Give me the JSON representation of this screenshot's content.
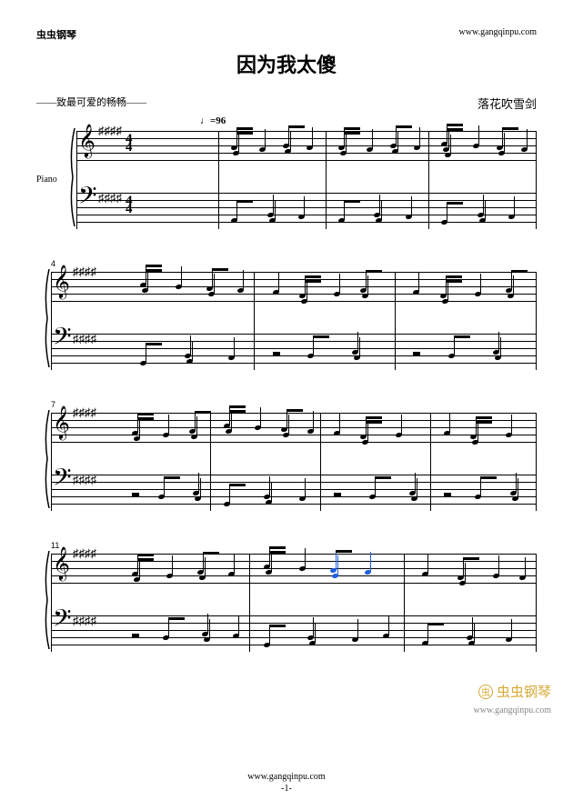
{
  "header": {
    "site_left": "虫虫钢琴",
    "site_right": "www.gangqinpu.com",
    "title": "因为我太傻",
    "dedication": "——致最可爱的畅畅——",
    "composer": "落花吹雪剑",
    "tempo": "♩=96"
  },
  "instrument": "Piano",
  "key_sharps": 4,
  "time_sig": {
    "num": "4",
    "den": "4"
  },
  "systems": [
    {
      "measure_start": null,
      "show_instrument": true,
      "show_timesig": true,
      "bar_positions": [
        0.2,
        0.47,
        0.73,
        1.0
      ],
      "treble_groups": [
        {
          "x": 0.23,
          "beam": true,
          "heads": [
            16,
            22
          ],
          "stems": 2,
          "double": true
        },
        {
          "x": 0.3,
          "heads": [
            18
          ]
        },
        {
          "x": 0.36,
          "beam": true,
          "heads": [
            14,
            20
          ],
          "stems": 2
        },
        {
          "x": 0.42,
          "heads": [
            16
          ]
        },
        {
          "x": 0.5,
          "beam": true,
          "heads": [
            16,
            22
          ],
          "stems": 2,
          "double": true
        },
        {
          "x": 0.57,
          "heads": [
            18
          ]
        },
        {
          "x": 0.63,
          "beam": true,
          "heads": [
            14,
            20
          ],
          "stems": 2
        },
        {
          "x": 0.69,
          "heads": [
            16
          ]
        },
        {
          "x": 0.76,
          "beam": true,
          "heads": [
            12,
            18,
            24
          ],
          "stems": 3,
          "double": true
        },
        {
          "x": 0.84,
          "heads": [
            14
          ]
        },
        {
          "x": 0.9,
          "beam": true,
          "heads": [
            16,
            22
          ],
          "stems": 2
        },
        {
          "x": 0.96,
          "heads": [
            18
          ]
        }
      ],
      "bass_groups": [
        {
          "x": 0.23,
          "heads": [
            28
          ],
          "beam": true,
          "stems": 2
        },
        {
          "x": 0.32,
          "heads": [
            22,
            28
          ]
        },
        {
          "x": 0.4,
          "heads": [
            24
          ]
        },
        {
          "x": 0.5,
          "heads": [
            28
          ],
          "beam": true,
          "stems": 2
        },
        {
          "x": 0.59,
          "heads": [
            22,
            28
          ]
        },
        {
          "x": 0.67,
          "heads": [
            24
          ]
        },
        {
          "x": 0.76,
          "heads": [
            30
          ],
          "beam": true,
          "stems": 2
        },
        {
          "x": 0.85,
          "heads": [
            22,
            28
          ]
        },
        {
          "x": 0.93,
          "heads": [
            24
          ]
        }
      ]
    },
    {
      "measure_start": "4",
      "bar_positions": [
        0.36,
        0.68,
        1.0
      ],
      "treble_groups": [
        {
          "x": 0.1,
          "beam": true,
          "heads": [
            12,
            18
          ],
          "stems": 2,
          "double": true
        },
        {
          "x": 0.18,
          "heads": [
            14
          ]
        },
        {
          "x": 0.25,
          "beam": true,
          "heads": [
            16,
            22
          ],
          "stems": 2
        },
        {
          "x": 0.32,
          "heads": [
            18
          ]
        },
        {
          "x": 0.4,
          "heads": [
            20
          ]
        },
        {
          "x": 0.46,
          "beam": true,
          "heads": [
            24,
            30
          ],
          "stems": 3,
          "double": true
        },
        {
          "x": 0.54,
          "heads": [
            22
          ]
        },
        {
          "x": 0.6,
          "beam": true,
          "heads": [
            18,
            24
          ],
          "stems": 2
        },
        {
          "x": 0.72,
          "heads": [
            20
          ]
        },
        {
          "x": 0.78,
          "beam": true,
          "heads": [
            24,
            30
          ],
          "stems": 3,
          "double": true
        },
        {
          "x": 0.86,
          "heads": [
            22
          ]
        },
        {
          "x": 0.93,
          "beam": true,
          "heads": [
            18,
            24
          ],
          "stems": 2
        }
      ],
      "bass_groups": [
        {
          "x": 0.1,
          "heads": [
            30
          ],
          "beam": true,
          "stems": 2
        },
        {
          "x": 0.2,
          "heads": [
            22,
            28
          ]
        },
        {
          "x": 0.3,
          "heads": [
            24
          ]
        },
        {
          "x": 0.4,
          "rest": 20
        },
        {
          "x": 0.48,
          "heads": [
            22
          ],
          "beam": true,
          "stems": 2
        },
        {
          "x": 0.58,
          "heads": [
            18,
            24
          ]
        },
        {
          "x": 0.72,
          "rest": 20
        },
        {
          "x": 0.8,
          "heads": [
            22
          ],
          "beam": true,
          "stems": 2
        },
        {
          "x": 0.9,
          "heads": [
            18,
            24
          ]
        }
      ]
    },
    {
      "measure_start": "7",
      "bar_positions": [
        0.26,
        0.51,
        0.76,
        1.0
      ],
      "treble_groups": [
        {
          "x": 0.08,
          "beam": true,
          "heads": [
            20,
            26
          ],
          "stems": 3,
          "double": true
        },
        {
          "x": 0.15,
          "heads": [
            22
          ]
        },
        {
          "x": 0.21,
          "beam": true,
          "heads": [
            18,
            24
          ],
          "stems": 2
        },
        {
          "x": 0.29,
          "beam": true,
          "heads": [
            12,
            18
          ],
          "stems": 2,
          "double": true
        },
        {
          "x": 0.36,
          "heads": [
            14
          ]
        },
        {
          "x": 0.42,
          "beam": true,
          "heads": [
            16,
            22
          ],
          "stems": 2
        },
        {
          "x": 0.48,
          "heads": [
            18
          ]
        },
        {
          "x": 0.54,
          "heads": [
            20
          ]
        },
        {
          "x": 0.6,
          "beam": true,
          "heads": [
            24,
            30
          ],
          "stems": 3,
          "double": true
        },
        {
          "x": 0.68,
          "heads": [
            22
          ]
        },
        {
          "x": 0.79,
          "heads": [
            20
          ]
        },
        {
          "x": 0.85,
          "beam": true,
          "heads": [
            24,
            30
          ],
          "stems": 3,
          "double": true
        },
        {
          "x": 0.93,
          "heads": [
            22
          ]
        }
      ],
      "bass_groups": [
        {
          "x": 0.08,
          "rest": 20
        },
        {
          "x": 0.14,
          "heads": [
            22
          ],
          "beam": true,
          "stems": 2
        },
        {
          "x": 0.22,
          "heads": [
            18,
            24
          ]
        },
        {
          "x": 0.29,
          "heads": [
            30
          ],
          "beam": true,
          "stems": 2
        },
        {
          "x": 0.38,
          "heads": [
            22,
            28
          ]
        },
        {
          "x": 0.46,
          "heads": [
            24
          ]
        },
        {
          "x": 0.54,
          "rest": 20
        },
        {
          "x": 0.62,
          "heads": [
            22
          ],
          "beam": true,
          "stems": 2
        },
        {
          "x": 0.71,
          "heads": [
            18,
            24
          ]
        },
        {
          "x": 0.79,
          "rest": 20
        },
        {
          "x": 0.86,
          "heads": [
            22
          ],
          "beam": true,
          "stems": 2
        },
        {
          "x": 0.94,
          "heads": [
            18,
            24
          ]
        }
      ]
    },
    {
      "measure_start": "11",
      "bar_positions": [
        0.35,
        0.7,
        1.0
      ],
      "treble_groups": [
        {
          "x": 0.08,
          "beam": true,
          "heads": [
            20,
            26
          ],
          "stems": 3,
          "double": true
        },
        {
          "x": 0.16,
          "heads": [
            22
          ]
        },
        {
          "x": 0.23,
          "beam": true,
          "heads": [
            18,
            24
          ],
          "stems": 2
        },
        {
          "x": 0.3,
          "heads": [
            20
          ]
        },
        {
          "x": 0.38,
          "beam": true,
          "heads": [
            12,
            18
          ],
          "stems": 2,
          "double": true
        },
        {
          "x": 0.46,
          "heads": [
            14
          ]
        },
        {
          "x": 0.53,
          "beam": true,
          "heads": [
            16,
            22
          ],
          "stems": 2,
          "blue": true
        },
        {
          "x": 0.61,
          "heads": [
            18
          ],
          "blue": true
        },
        {
          "x": 0.74,
          "heads": [
            20
          ]
        },
        {
          "x": 0.82,
          "beam": true,
          "heads": [
            24,
            30
          ],
          "stems": 2
        },
        {
          "x": 0.9,
          "heads": [
            22
          ]
        },
        {
          "x": 0.96,
          "heads": [
            24
          ]
        }
      ],
      "bass_groups": [
        {
          "x": 0.08,
          "rest": 20
        },
        {
          "x": 0.15,
          "heads": [
            22
          ],
          "beam": true,
          "stems": 2
        },
        {
          "x": 0.24,
          "heads": [
            18,
            24
          ]
        },
        {
          "x": 0.31,
          "heads": [
            20
          ]
        },
        {
          "x": 0.38,
          "heads": [
            30
          ],
          "beam": true,
          "stems": 2
        },
        {
          "x": 0.48,
          "heads": [
            22,
            28
          ]
        },
        {
          "x": 0.58,
          "heads": [
            24
          ]
        },
        {
          "x": 0.65,
          "heads": [
            20
          ]
        },
        {
          "x": 0.74,
          "heads": [
            28
          ],
          "beam": true,
          "stems": 2
        },
        {
          "x": 0.84,
          "heads": [
            22,
            28
          ]
        },
        {
          "x": 0.93,
          "heads": [
            24
          ]
        }
      ]
    }
  ],
  "footer": {
    "url": "www.gangqinpu.com",
    "page": "-1-"
  },
  "watermark": {
    "text": "虫虫钢琴",
    "url": "www.gangqinpu.com"
  }
}
